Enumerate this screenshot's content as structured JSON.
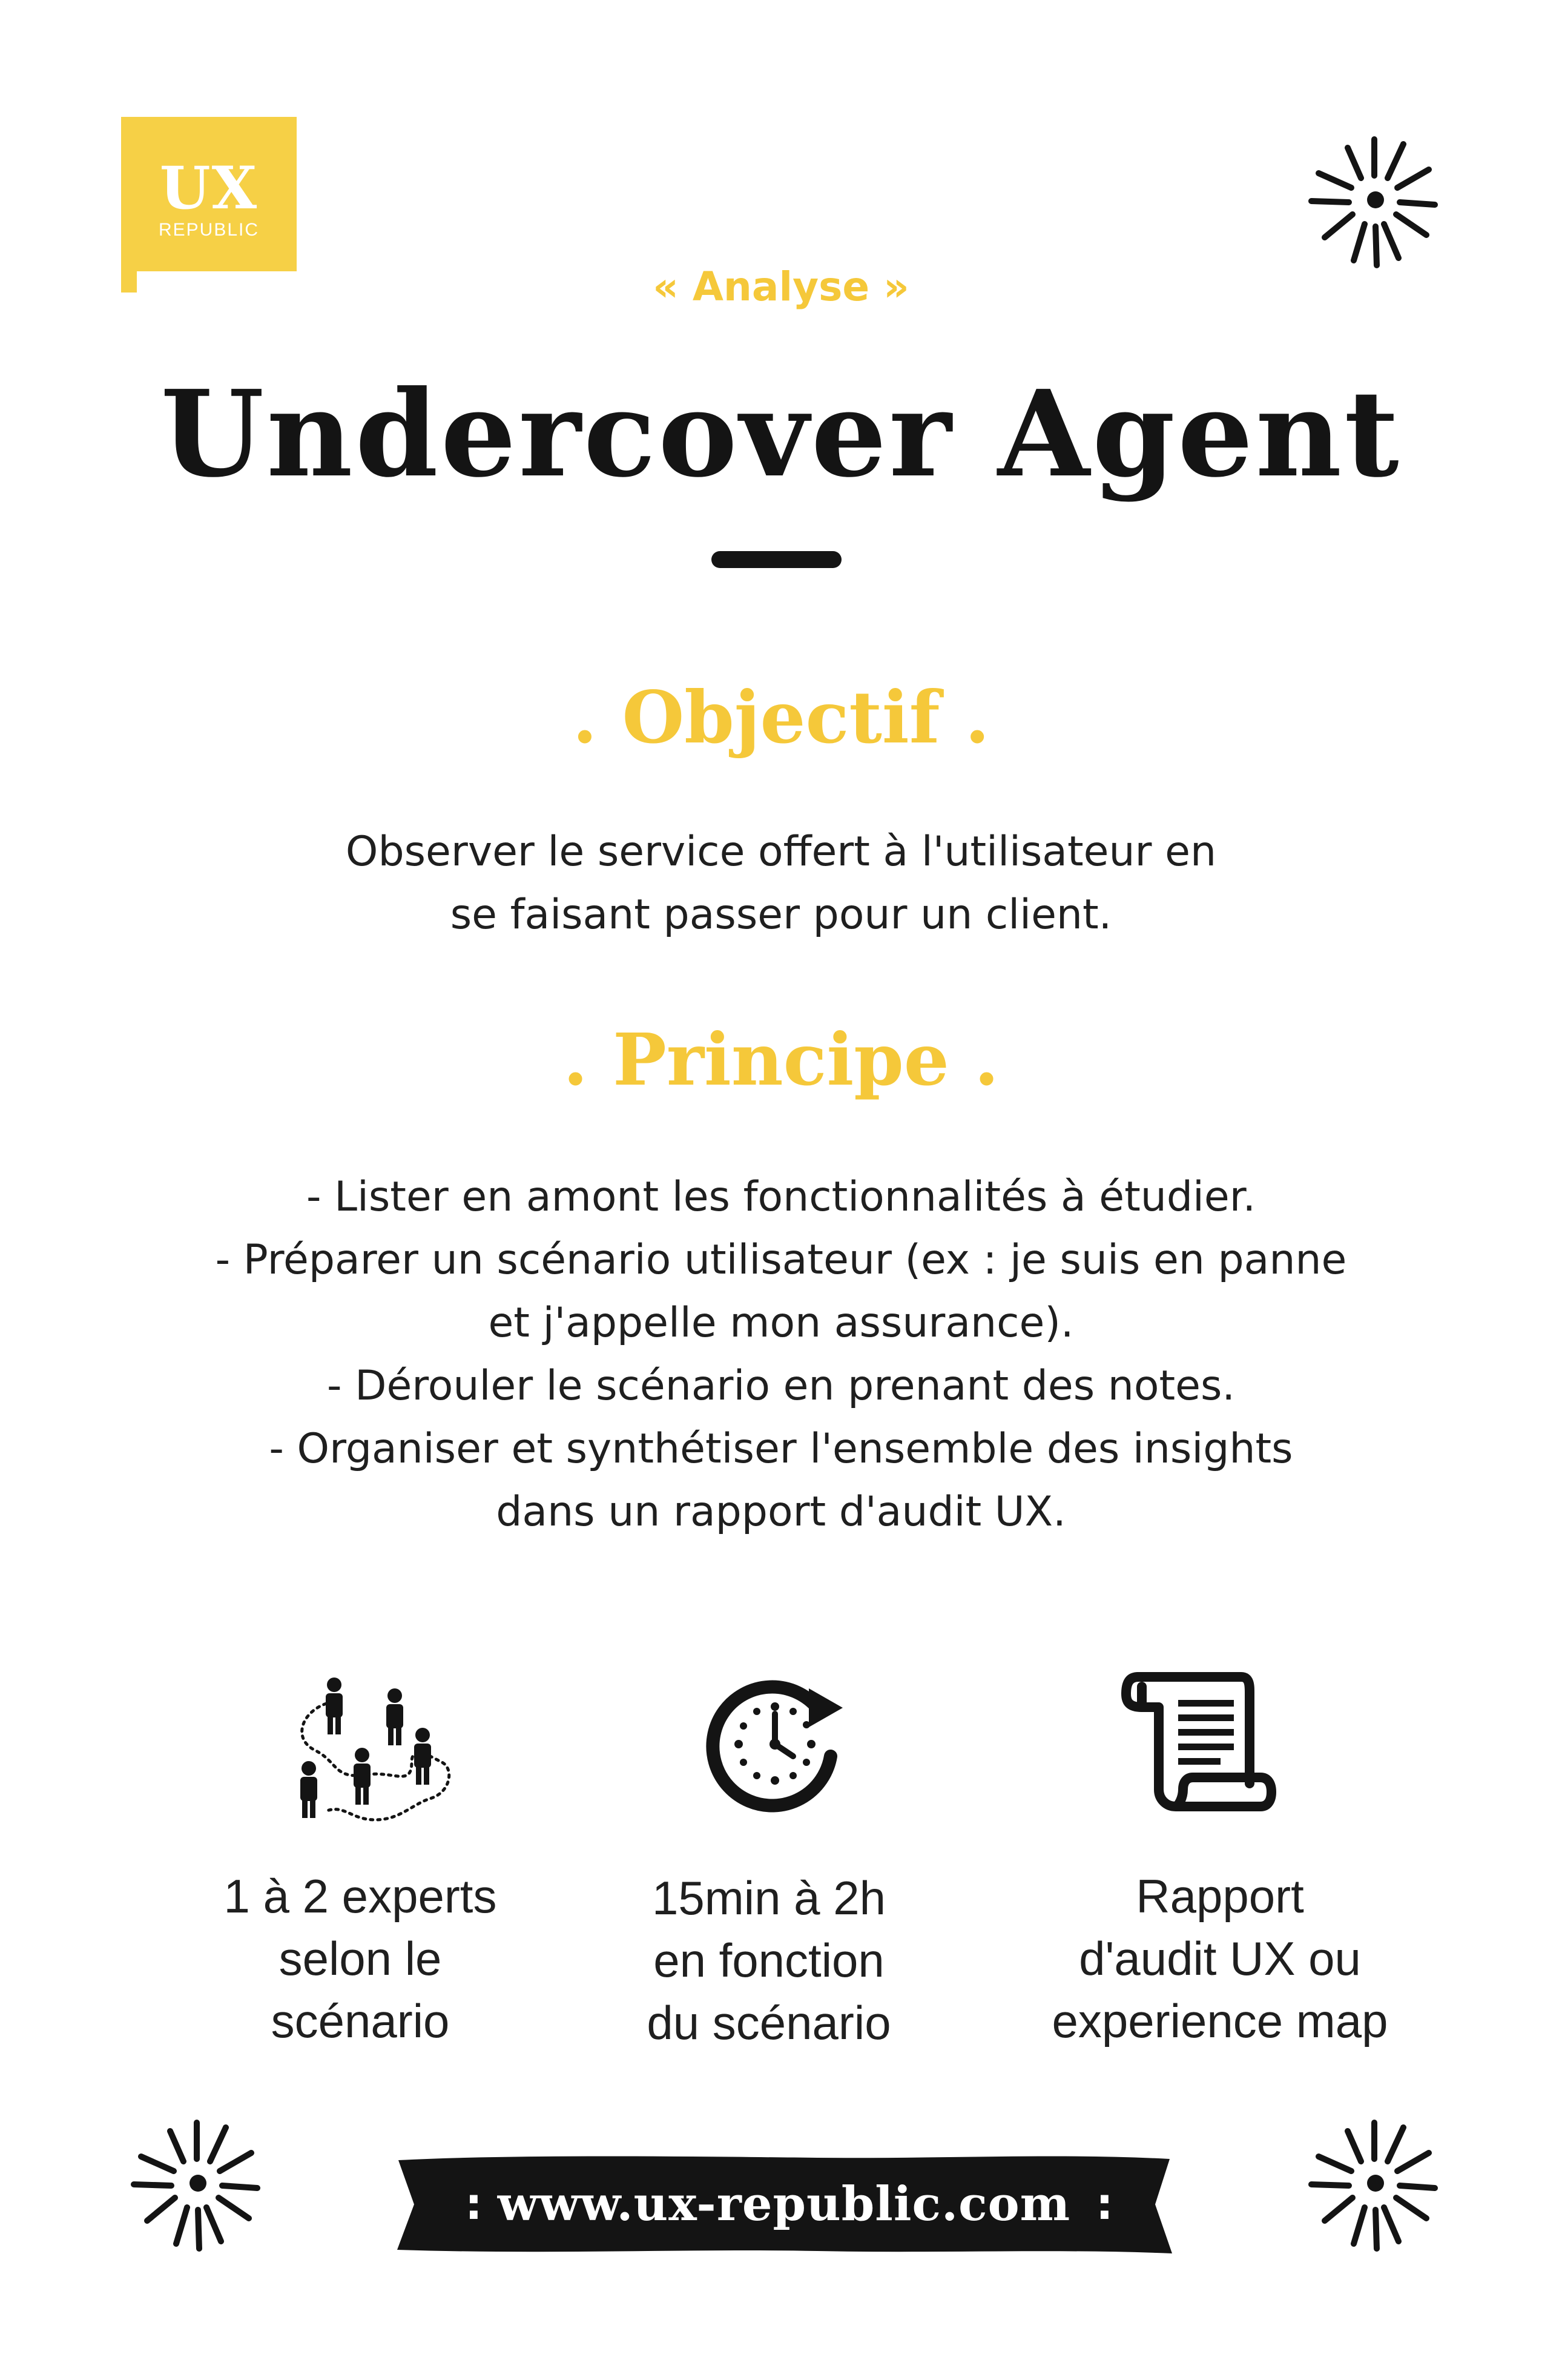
{
  "logo": {
    "brand": "UX",
    "sub": "REPUBLIC"
  },
  "kicker": "« Analyse »",
  "title": "Undercover Agent",
  "objectif": {
    "title": ". Objectif .",
    "lines": [
      "Observer le service offert à l'utilisateur en",
      "se faisant passer pour un client."
    ]
  },
  "principe": {
    "title": ". Principe .",
    "lines": [
      "- Lister en amont les fonctionnalités à étudier.",
      "- Préparer un scénario utilisateur (ex : je suis en panne",
      "et j'appelle mon assurance).",
      "- Dérouler le scénario en prenant des notes.",
      "- Organiser et synthétiser l'ensemble des insights",
      "dans un rapport d'audit UX."
    ]
  },
  "stats": [
    {
      "icon": "people-journey-icon",
      "lines": [
        "1 à 2 experts",
        "selon le",
        "scénario"
      ]
    },
    {
      "icon": "clock-icon",
      "lines": [
        "15min à 2h",
        "en fonction",
        "du scénario"
      ]
    },
    {
      "icon": "document-scroll-icon",
      "lines": [
        "Rapport",
        "d'audit UX ou",
        "experience map"
      ]
    }
  ],
  "footer": {
    "url": "www.ux-republic.com",
    "left_mark": ":",
    "right_mark": ":"
  },
  "colors": {
    "accent": "#f5c83a",
    "logo_bg": "#f6d046",
    "ink": "#141414",
    "background": "#ffffff"
  }
}
